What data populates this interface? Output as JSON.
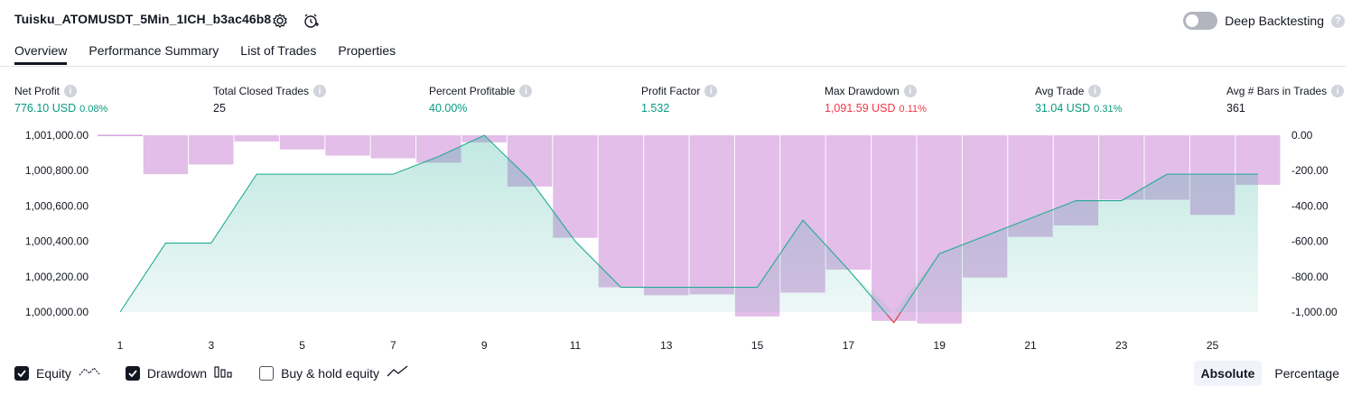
{
  "header": {
    "title": "Tuisku_ATOMUSDT_5Min_1ICH_b3ac46b8",
    "deep_backtesting_label": "Deep Backtesting",
    "help_glyph": "?"
  },
  "tabs": [
    {
      "label": "Overview",
      "active": true
    },
    {
      "label": "Performance Summary",
      "active": false
    },
    {
      "label": "List of Trades",
      "active": false
    },
    {
      "label": "Properties",
      "active": false
    }
  ],
  "metrics": [
    {
      "label": "Net Profit",
      "value": "776.10 USD",
      "pct": "0.08%",
      "tone": "pos"
    },
    {
      "label": "Total Closed Trades",
      "value": "25",
      "pct": "",
      "tone": "neu"
    },
    {
      "label": "Percent Profitable",
      "value": "40.00%",
      "pct": "",
      "tone": "pos"
    },
    {
      "label": "Profit Factor",
      "value": "1.532",
      "pct": "",
      "tone": "pos"
    },
    {
      "label": "Max Drawdown",
      "value": "1,091.59 USD",
      "pct": "0.11%",
      "tone": "neg"
    },
    {
      "label": "Avg Trade",
      "value": "31.04 USD",
      "pct": "0.31%",
      "tone": "pos"
    },
    {
      "label": "Avg # Bars in Trades",
      "value": "361",
      "pct": "",
      "tone": "neu"
    }
  ],
  "chart_data": {
    "type": "area",
    "left_axis": {
      "ticks": [
        "1,001,000.00",
        "1,000,800.00",
        "1,000,600.00",
        "1,000,400.00",
        "1,000,200.00",
        "1,000,000.00"
      ],
      "range": [
        1000000,
        1001000
      ]
    },
    "right_axis": {
      "ticks": [
        "0.00",
        "-200.00",
        "-400.00",
        "-600.00",
        "-800.00",
        "-1,000.00"
      ],
      "range": [
        -1000,
        0
      ]
    },
    "x_ticks": [
      "1",
      "3",
      "5",
      "7",
      "9",
      "11",
      "13",
      "15",
      "17",
      "19",
      "21",
      "23",
      "25"
    ],
    "equity": {
      "x": [
        1,
        2,
        3,
        4,
        5,
        6,
        7,
        8,
        9,
        10,
        11,
        12,
        13,
        14,
        15,
        16,
        17,
        18,
        19,
        20,
        21,
        22,
        23,
        24,
        25,
        26
      ],
      "values": [
        1000000,
        1000390,
        1000390,
        1000780,
        1000780,
        1000780,
        1000780,
        1000880,
        1001000,
        1000750,
        1000400,
        1000140,
        1000140,
        1000140,
        1000140,
        1000520,
        1000240,
        999940,
        1000330,
        1000430,
        1000530,
        1000630,
        1000630,
        1000780,
        1000780,
        1000780
      ],
      "color": "#22ab94",
      "fill_color": "#22ab94"
    },
    "drawdown": {
      "x": [
        1,
        2,
        3,
        4,
        5,
        6,
        7,
        8,
        9,
        10,
        11,
        12,
        13,
        14,
        15,
        16,
        17,
        18,
        19,
        20,
        21,
        22,
        23,
        24,
        25,
        26
      ],
      "values": [
        -5,
        -220,
        -165,
        -35,
        -80,
        -115,
        -130,
        -155,
        -40,
        -290,
        -580,
        -860,
        -905,
        -900,
        -1025,
        -890,
        -760,
        -1050,
        -1065,
        -805,
        -575,
        -510,
        -365,
        -365,
        -450,
        -280
      ],
      "color": "#ce93d8"
    },
    "grid": false
  },
  "legend": [
    {
      "label": "Equity",
      "checked": true,
      "icon": "equity-line-icon"
    },
    {
      "label": "Drawdown",
      "checked": true,
      "icon": "drawdown-bars-icon"
    },
    {
      "label": "Buy & hold equity",
      "checked": false,
      "icon": "buy-hold-line-icon"
    }
  ],
  "modes": [
    {
      "label": "Absolute",
      "active": true
    },
    {
      "label": "Percentage",
      "active": false
    }
  ]
}
